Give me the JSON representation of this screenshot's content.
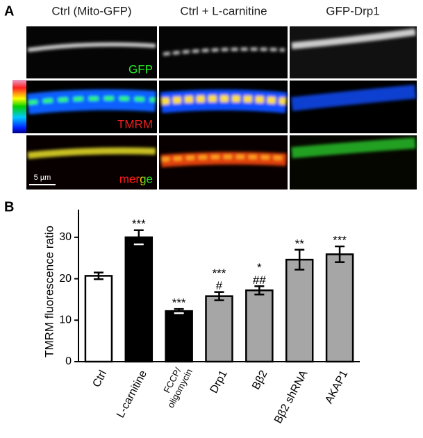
{
  "panel_a": {
    "label": "A",
    "columns": [
      "Ctrl (Mito-GFP)",
      "Ctrl + L-carnitine",
      "GFP-Drp1"
    ],
    "rows": [
      "GFP",
      "TMRM",
      "merge"
    ],
    "scale_bar": "5 µm"
  },
  "chart_data": {
    "type": "bar",
    "panel_label": "B",
    "ylabel": "TMRM fluorescence ratio",
    "categories": [
      "Ctrl",
      "L-carnitine",
      "FCCP/ oligomycin",
      "Drp1",
      "Bβ2",
      "Bβ2 shRNA",
      "AKAP1"
    ],
    "values": [
      20.7,
      30,
      12.2,
      15.8,
      17.2,
      24.6,
      25.9
    ],
    "errors": [
      0.8,
      1.7,
      0.5,
      1.0,
      1.0,
      2.4,
      1.9
    ],
    "colors": [
      "#ffffff",
      "#000000",
      "#000000",
      "#a6a6a6",
      "#a6a6a6",
      "#a6a6a6",
      "#a6a6a6"
    ],
    "annotations": [
      [],
      [
        "***"
      ],
      [
        "***"
      ],
      [
        "***",
        "#"
      ],
      [
        "*",
        "##"
      ],
      [
        "**"
      ],
      [
        "***"
      ]
    ],
    "ylim": [
      0,
      35
    ],
    "yticks": [
      0,
      10,
      20,
      30
    ]
  }
}
